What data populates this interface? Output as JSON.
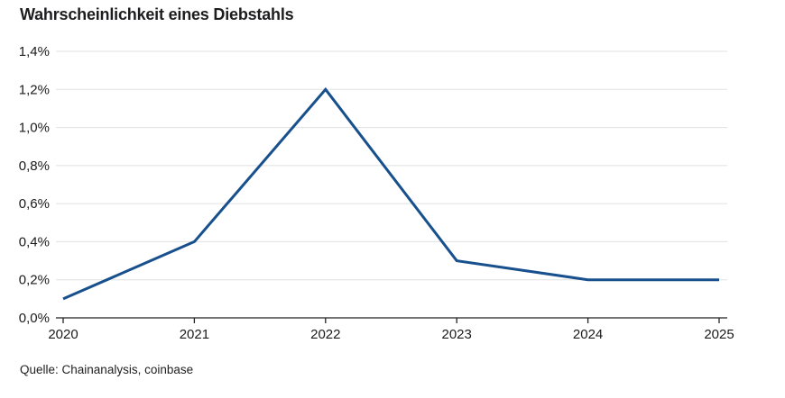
{
  "title": "Wahrscheinlichkeit eines Diebstahls",
  "source": "Quelle: Chainanalysis, coinbase",
  "colors": {
    "line": "#17508c",
    "grid": "#e0e0e0",
    "axis": "#222222",
    "text": "#1a1a1a",
    "background": "#ffffff"
  },
  "chart_data": {
    "type": "line",
    "title": "Wahrscheinlichkeit eines Diebstahls",
    "x": [
      "2020",
      "2021",
      "2022",
      "2023",
      "2024",
      "2025"
    ],
    "series": [
      {
        "name": "Wahrscheinlichkeit eines Diebstahls",
        "values": [
          0.1,
          0.4,
          1.2,
          0.3,
          0.2,
          0.2
        ],
        "unit": "%"
      }
    ],
    "xlabel": "",
    "ylabel": "",
    "ylim": [
      0,
      1.4
    ],
    "yticks": [
      {
        "v": 0.0,
        "label": "0,0%"
      },
      {
        "v": 0.2,
        "label": "0,2%"
      },
      {
        "v": 0.4,
        "label": "0,4%"
      },
      {
        "v": 0.6,
        "label": "0,6%"
      },
      {
        "v": 0.8,
        "label": "0,8%"
      },
      {
        "v": 1.0,
        "label": "1,0%"
      },
      {
        "v": 1.2,
        "label": "1,2%"
      },
      {
        "v": 1.4,
        "label": "1,4%"
      }
    ],
    "grid": "horizontal",
    "legend": "none",
    "source": "Quelle: Chainanalysis, coinbase"
  }
}
